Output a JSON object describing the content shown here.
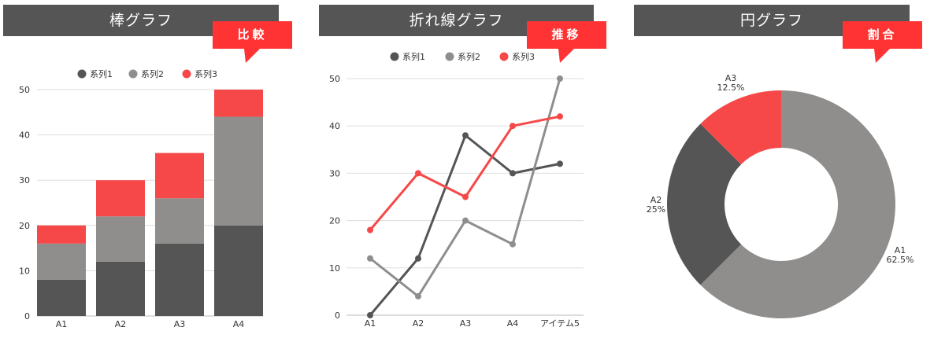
{
  "colors": {
    "header_bg": "#555555",
    "badge_bg": "#ff3333",
    "series1": "#555555",
    "series2": "#8f8e8c",
    "series3": "#f64848",
    "grid": "#dddddd"
  },
  "panels": [
    {
      "title": "棒グラフ",
      "badge": "比較"
    },
    {
      "title": "折れ線グラフ",
      "badge": "推移"
    },
    {
      "title": "円グラフ",
      "badge": "割合"
    }
  ],
  "legend": [
    "系列1",
    "系列2",
    "系列3"
  ],
  "chart_data": [
    {
      "type": "bar",
      "stacked": true,
      "title": "棒グラフ",
      "badge": "比較",
      "categories": [
        "A1",
        "A2",
        "A3",
        "A4"
      ],
      "series": [
        {
          "name": "系列1",
          "values": [
            8,
            12,
            16,
            20
          ]
        },
        {
          "name": "系列2",
          "values": [
            8,
            10,
            10,
            24
          ]
        },
        {
          "name": "系列3",
          "values": [
            4,
            8,
            10,
            6
          ]
        }
      ],
      "yticks": [
        0,
        10,
        20,
        30,
        40,
        50
      ],
      "ylim": [
        0,
        50
      ],
      "grid": true,
      "legend_position": "top"
    },
    {
      "type": "line",
      "title": "折れ線グラフ",
      "badge": "推移",
      "categories": [
        "A1",
        "A2",
        "A3",
        "A4",
        "アイテム5"
      ],
      "series": [
        {
          "name": "系列1",
          "values": [
            0,
            12,
            38,
            30,
            32
          ]
        },
        {
          "name": "系列2",
          "values": [
            12,
            4,
            20,
            15,
            50
          ]
        },
        {
          "name": "系列3",
          "values": [
            18,
            30,
            25,
            40,
            42
          ]
        }
      ],
      "yticks": [
        0,
        10,
        20,
        30,
        40,
        50
      ],
      "ylim": [
        0,
        50
      ],
      "grid": true,
      "legend_position": "top"
    },
    {
      "type": "pie",
      "donut": true,
      "title": "円グラフ",
      "badge": "割合",
      "categories": [
        "A1",
        "A2",
        "A3"
      ],
      "values": [
        62.5,
        25,
        12.5
      ],
      "labels": [
        "62.5%",
        "25%",
        "12.5%"
      ]
    }
  ]
}
